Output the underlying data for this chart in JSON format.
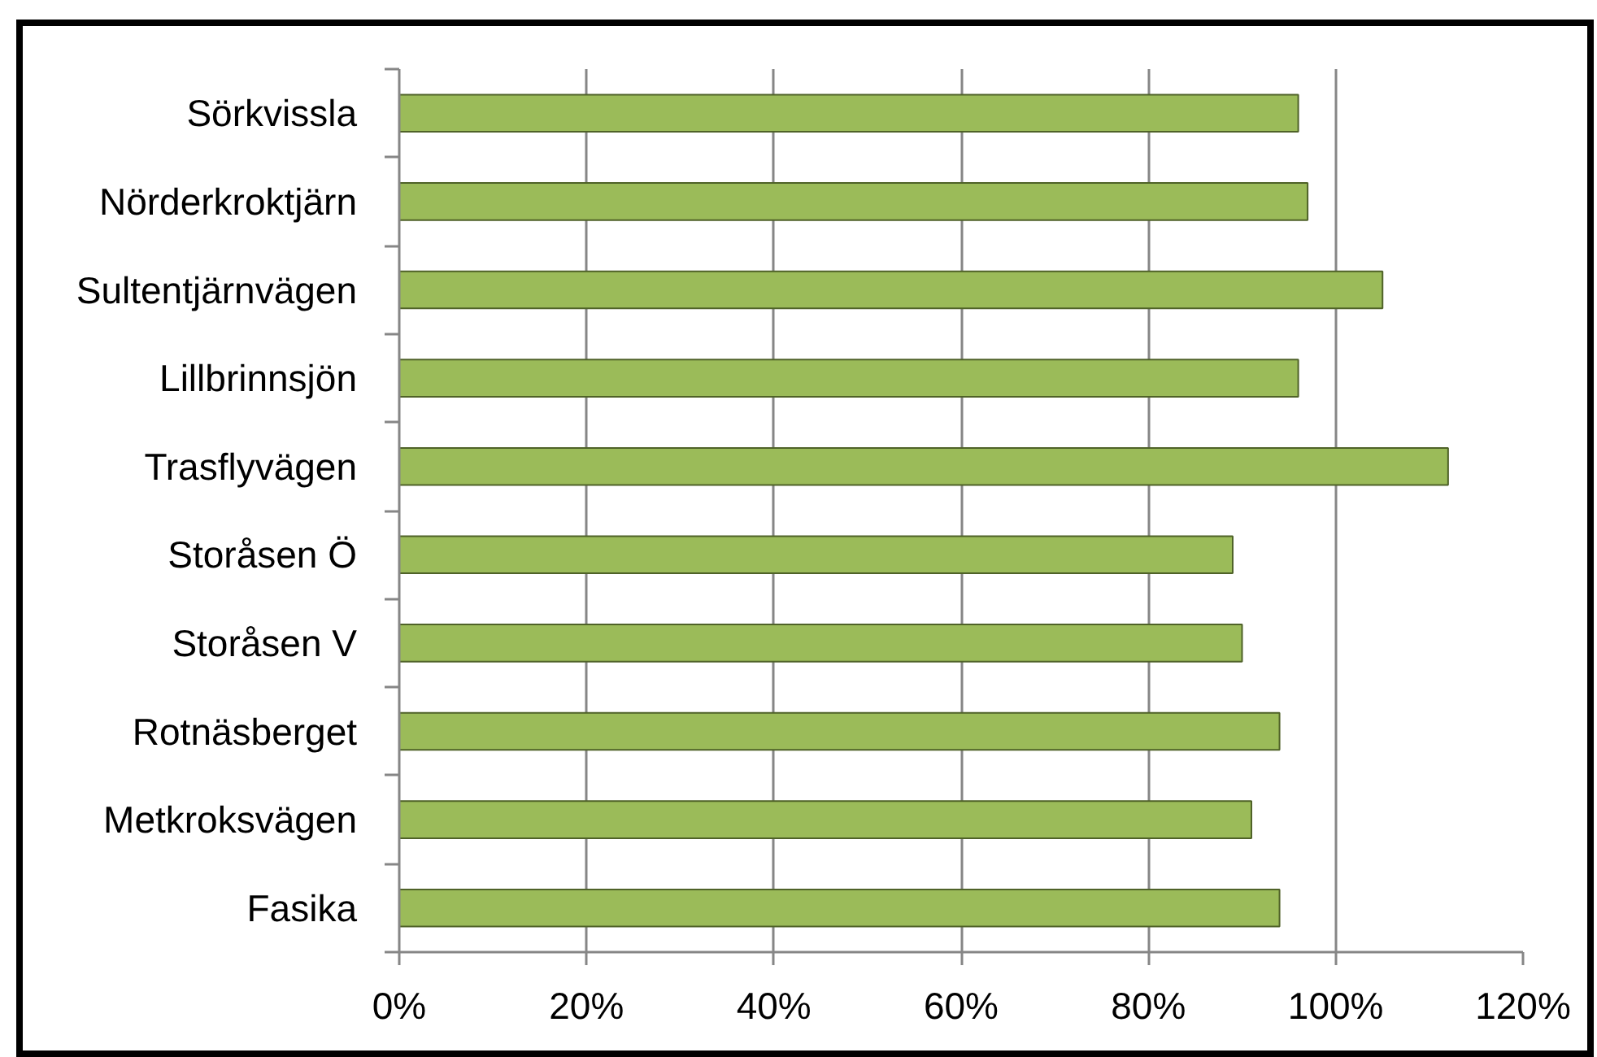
{
  "chart_data": {
    "type": "bar",
    "orientation": "horizontal",
    "categories": [
      "Sörkvissla",
      "Nörderkroktjärn",
      "Sultentjärnvägen",
      "Lillbrinnsjön",
      "Trasflyvägen",
      "Storåsen Ö",
      "Storåsen V",
      "Rotnäsberget",
      "Metkroksvägen",
      "Fasika"
    ],
    "values": [
      96,
      97,
      105,
      96,
      112,
      89,
      90,
      94,
      91,
      94
    ],
    "color": "#9bbb59",
    "xlim": [
      0,
      120
    ],
    "xticks": [
      {
        "value": 0,
        "label": "0%"
      },
      {
        "value": 20,
        "label": "20%"
      },
      {
        "value": 40,
        "label": "40%"
      },
      {
        "value": 60,
        "label": "60%"
      },
      {
        "value": 80,
        "label": "80%"
      },
      {
        "value": 100,
        "label": "100%"
      },
      {
        "value": 120,
        "label": "120%"
      }
    ],
    "grid": "x"
  }
}
